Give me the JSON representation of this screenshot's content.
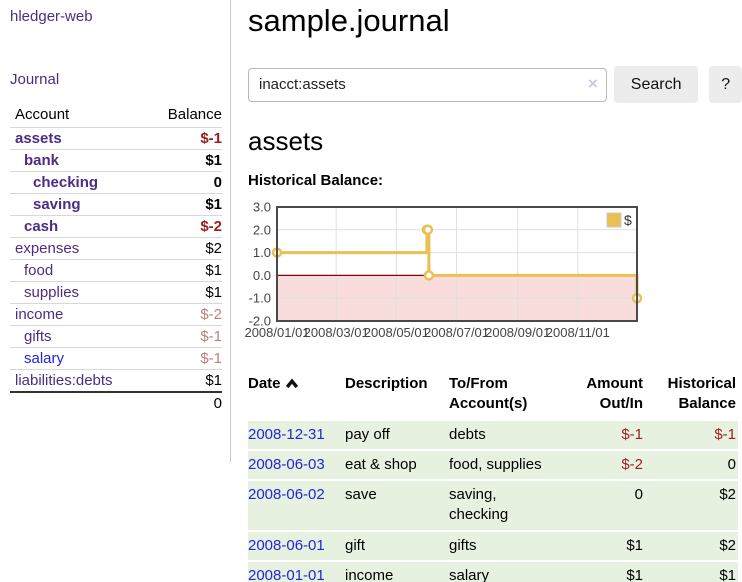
{
  "app": {
    "brand": "hledger-web",
    "nav_journal": "Journal"
  },
  "colors": {
    "link_purple": "#4b2d85",
    "link_blue": "#2126d9",
    "neg_strong": "#9d1d1d",
    "neg_soft": "#bd7e7e",
    "row_green": "#e6f1e0",
    "chart_gold": "#e9c152",
    "chart_negative_fill": "#f9dcdc",
    "chart_zero_line": "#8b0000"
  },
  "sidebar": {
    "header": {
      "account": "Account",
      "balance": "Balance"
    },
    "accounts": [
      {
        "name": "assets",
        "indent": 0,
        "balance": "$-1",
        "bold": true,
        "neg": "strong"
      },
      {
        "name": "bank",
        "indent": 1,
        "balance": "$1",
        "bold": true
      },
      {
        "name": "checking",
        "indent": 2,
        "balance": "0",
        "bold": true
      },
      {
        "name": "saving",
        "indent": 2,
        "balance": "$1",
        "bold": true
      },
      {
        "name": "cash",
        "indent": 1,
        "balance": "$-2",
        "bold": true,
        "neg": "strong"
      },
      {
        "name": "expenses",
        "indent": 0,
        "balance": "$2"
      },
      {
        "name": "food",
        "indent": 1,
        "balance": "$1"
      },
      {
        "name": "supplies",
        "indent": 1,
        "balance": "$1"
      },
      {
        "name": "income",
        "indent": 0,
        "balance": "$-2",
        "neg": "soft"
      },
      {
        "name": "gifts",
        "indent": 1,
        "balance": "$-1",
        "neg": "soft"
      },
      {
        "name": "salary",
        "indent": 1,
        "balance": "$-1",
        "neg": "soft",
        "link_style": "unvisited"
      },
      {
        "name": "liabilities:debts",
        "indent": 0,
        "balance": "$1"
      }
    ],
    "total": "0"
  },
  "header": {
    "title": "sample.journal"
  },
  "search": {
    "value": "inacct:assets",
    "clear_label": "×",
    "button": "Search",
    "help_button": "?"
  },
  "account_page": {
    "heading": "assets",
    "chart_label": "Historical Balance:"
  },
  "chart_data": {
    "type": "line",
    "title": "Historical Balance:",
    "series": [
      {
        "name": "$",
        "color": "#e9c152",
        "style": "steps-with-markers",
        "points": [
          [
            "2008-01-01",
            1
          ],
          [
            "2008-06-01",
            2
          ],
          [
            "2008-06-02",
            2
          ],
          [
            "2008-06-03",
            0
          ],
          [
            "2008-12-31",
            -1
          ]
        ]
      }
    ],
    "x_range": [
      "2008-01-01",
      "2008-12-31"
    ],
    "x_ticks": [
      "2008/01/01",
      "2008/03/01",
      "2008/05/01",
      "2008/07/01",
      "2008/09/01",
      "2008/11/01"
    ],
    "y_ticks": [
      "3.0",
      "2.0",
      "1.0",
      "0.0",
      "-1.0",
      "-2.0"
    ],
    "ylim": [
      -2,
      3
    ],
    "grid": true,
    "negative_region_fill": "#f9dcdc",
    "zero_line_color": "#8b0000",
    "legend": {
      "position": "top-right",
      "label": "$"
    }
  },
  "register": {
    "columns": [
      "Date",
      "Description",
      "To/From Account(s)",
      "Amount Out/In",
      "Historical Balance"
    ],
    "rows": [
      {
        "date": "2008-12-31",
        "description": "pay off",
        "accounts": "debts",
        "amount": "$-1",
        "amount_neg": true,
        "balance": "$-1",
        "balance_neg": true
      },
      {
        "date": "2008-06-03",
        "description": "eat & shop",
        "accounts": "food, supplies",
        "amount": "$-2",
        "amount_neg": true,
        "balance": "0",
        "balance_neg": false
      },
      {
        "date": "2008-06-02",
        "description": "save",
        "accounts": "saving, checking",
        "amount": "0",
        "amount_neg": false,
        "balance": "$2",
        "balance_neg": false
      },
      {
        "date": "2008-06-01",
        "description": "gift",
        "accounts": "gifts",
        "amount": "$1",
        "amount_neg": false,
        "balance": "$2",
        "balance_neg": false
      },
      {
        "date": "2008-01-01",
        "description": "income",
        "accounts": "salary",
        "amount": "$1",
        "amount_neg": false,
        "balance": "$1",
        "balance_neg": false
      }
    ]
  }
}
